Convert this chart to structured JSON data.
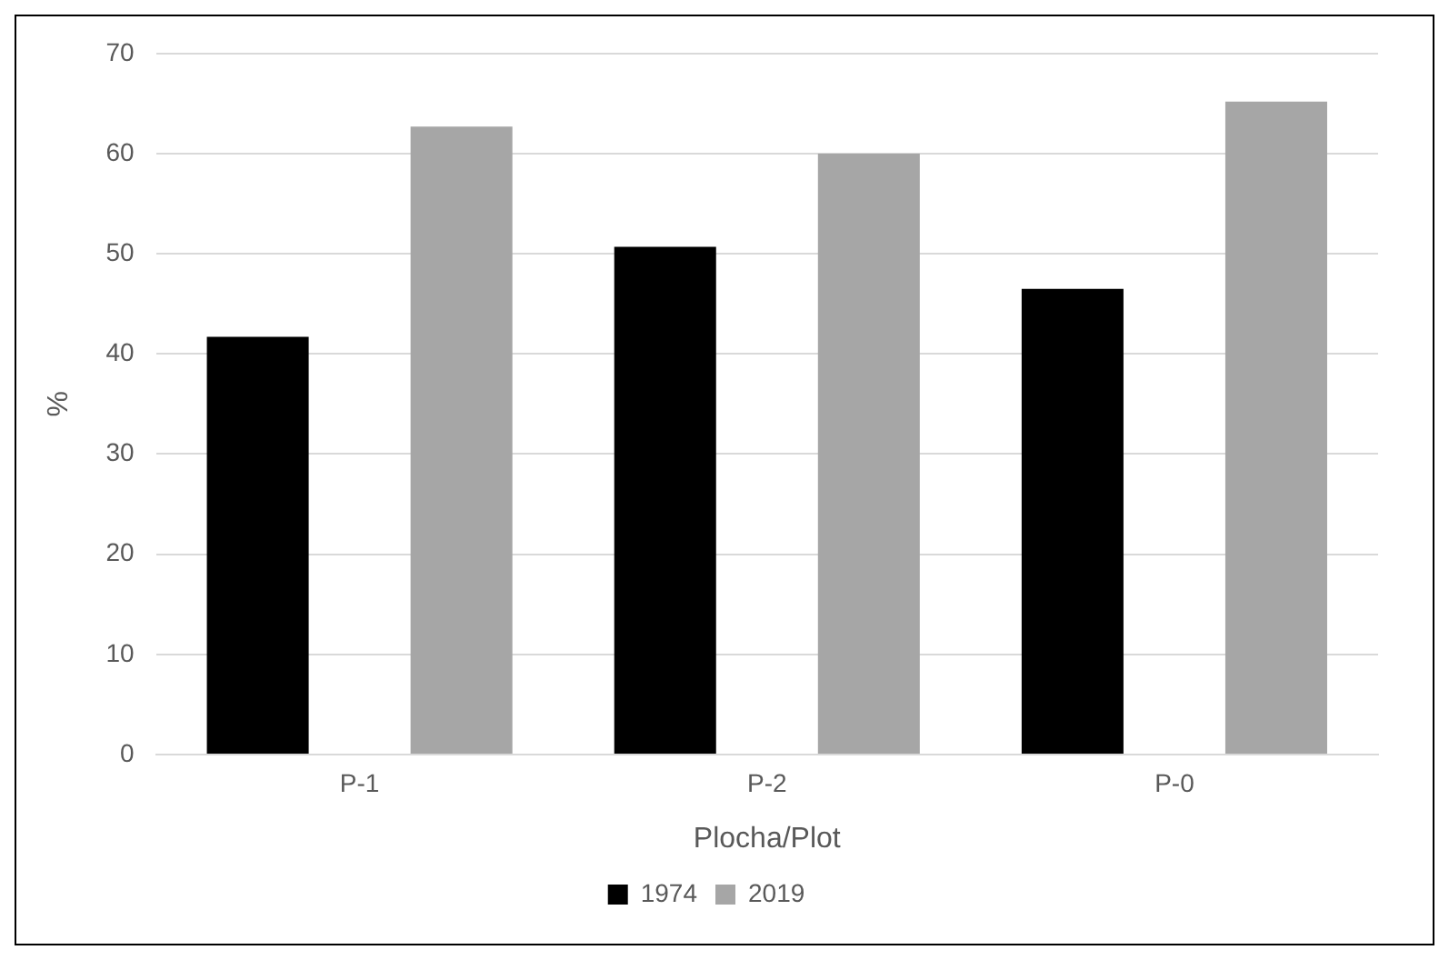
{
  "chart_data": {
    "type": "bar",
    "xlabel": "Plocha/Plot",
    "ylabel": "%",
    "categories": [
      "P-1",
      "P-2",
      "P-0"
    ],
    "series": [
      {
        "name": "1974",
        "color": "#000000",
        "values": [
          41.7,
          50.7,
          46.5
        ]
      },
      {
        "name": "2019",
        "color": "#a6a6a6",
        "values": [
          62.7,
          60.0,
          65.2
        ]
      }
    ],
    "ylim": [
      0,
      70
    ],
    "yticks": [
      0,
      10,
      20,
      30,
      40,
      50,
      60,
      70
    ],
    "grid": "y",
    "legend": "bottom"
  }
}
